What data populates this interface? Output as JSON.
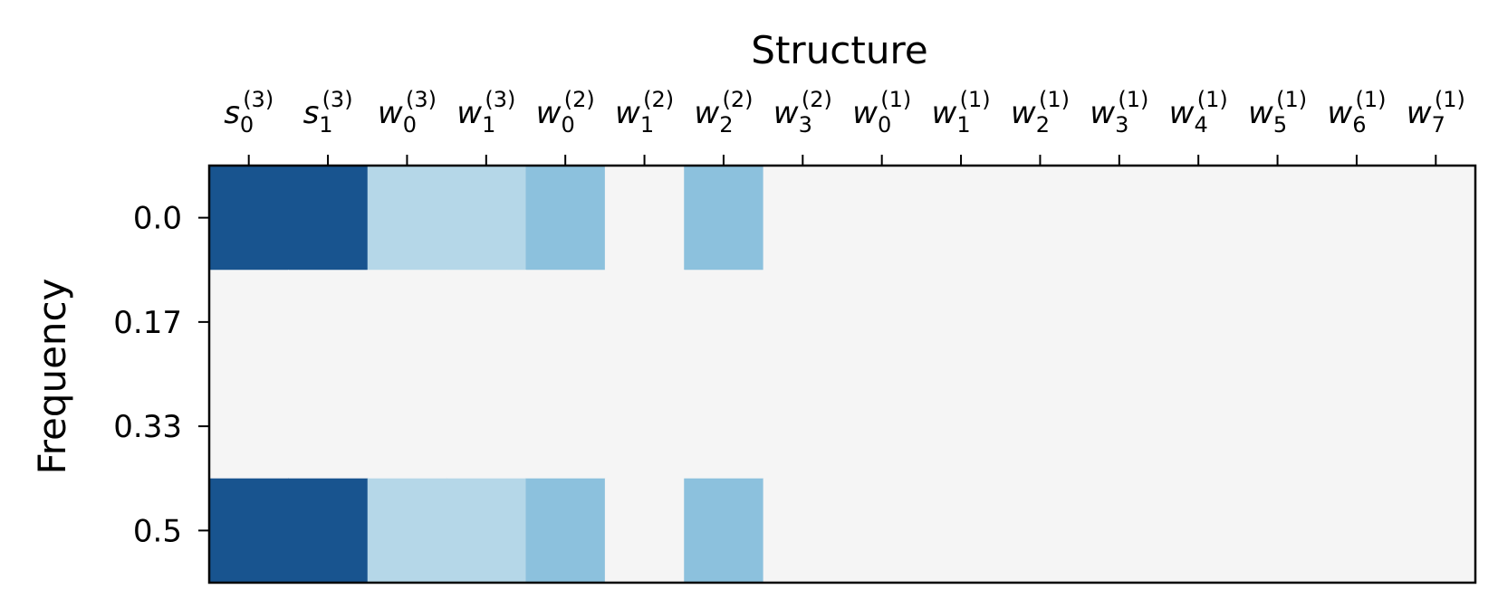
{
  "chart_data": {
    "type": "heatmap",
    "title": "Structure",
    "xlabel": "Structure",
    "ylabel": "Frequency",
    "x_categories": [
      {
        "base": "s",
        "sub": "0",
        "sup": "(3)"
      },
      {
        "base": "s",
        "sub": "1",
        "sup": "(3)"
      },
      {
        "base": "w",
        "sub": "0",
        "sup": "(3)"
      },
      {
        "base": "w",
        "sub": "1",
        "sup": "(3)"
      },
      {
        "base": "w",
        "sub": "0",
        "sup": "(2)"
      },
      {
        "base": "w",
        "sub": "1",
        "sup": "(2)"
      },
      {
        "base": "w",
        "sub": "2",
        "sup": "(2)"
      },
      {
        "base": "w",
        "sub": "3",
        "sup": "(2)"
      },
      {
        "base": "w",
        "sub": "0",
        "sup": "(1)"
      },
      {
        "base": "w",
        "sub": "1",
        "sup": "(1)"
      },
      {
        "base": "w",
        "sub": "2",
        "sup": "(1)"
      },
      {
        "base": "w",
        "sub": "3",
        "sup": "(1)"
      },
      {
        "base": "w",
        "sub": "4",
        "sup": "(1)"
      },
      {
        "base": "w",
        "sub": "5",
        "sup": "(1)"
      },
      {
        "base": "w",
        "sub": "6",
        "sup": "(1)"
      },
      {
        "base": "w",
        "sub": "7",
        "sup": "(1)"
      }
    ],
    "y_categories": [
      "0.0",
      "0.17",
      "0.33",
      "0.5"
    ],
    "x_axis_position": "top",
    "grid": false,
    "legend": "none",
    "colormap": "Blues",
    "value_range": [
      0,
      1
    ],
    "cells": [
      [
        1.0,
        1.0,
        0.5,
        0.5,
        0.25,
        0.0,
        0.25,
        0.0,
        0.0,
        0.0,
        0.0,
        0.0,
        0.0,
        0.0,
        0.0,
        0.0
      ],
      [
        0.0,
        0.0,
        0.0,
        0.0,
        0.0,
        0.0,
        0.0,
        0.0,
        0.0,
        0.0,
        0.0,
        0.0,
        0.0,
        0.0,
        0.0,
        0.0
      ],
      [
        0.0,
        0.0,
        0.0,
        0.0,
        0.0,
        0.0,
        0.0,
        0.0,
        0.0,
        0.0,
        0.0,
        0.0,
        0.0,
        0.0,
        0.0,
        0.0
      ],
      [
        1.0,
        1.0,
        0.5,
        0.5,
        0.25,
        0.0,
        0.25,
        0.0,
        0.0,
        0.0,
        0.0,
        0.0,
        0.0,
        0.0,
        0.0,
        0.0
      ]
    ],
    "colors": {
      "zero": "#f5f5f5",
      "low": "#8cc1dd",
      "mid": "#b5d7e8",
      "high": "#18548f",
      "frame": "#000000"
    }
  }
}
